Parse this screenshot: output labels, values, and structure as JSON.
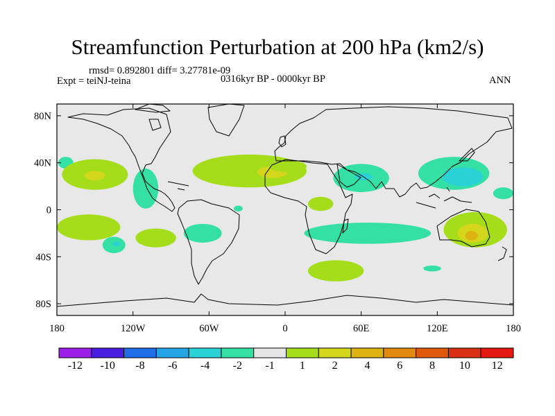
{
  "title": "Streamfunction Perturbation at 200 hPa (km2/s)",
  "stats": "rmsd= 0.892801 diff= 3.27781e-09",
  "experiment": "Expt = teiNJ-teina",
  "period": "0316kyr BP - 0000kyr BP",
  "season": "ANN",
  "colors": {
    "background": "#e8e8e8",
    "coast": "#000000"
  },
  "chart_data": {
    "type": "heatmap",
    "xlim": [
      -180,
      180
    ],
    "ylim": [
      -90,
      90
    ],
    "x_ticks": [
      {
        "value": -180,
        "label": "180"
      },
      {
        "value": -120,
        "label": "120W"
      },
      {
        "value": -60,
        "label": "60W"
      },
      {
        "value": 0,
        "label": "0"
      },
      {
        "value": 60,
        "label": "60E"
      },
      {
        "value": 120,
        "label": "120E"
      },
      {
        "value": 180,
        "label": "180"
      }
    ],
    "y_ticks": [
      {
        "value": 80,
        "label": "80N"
      },
      {
        "value": 40,
        "label": "40N"
      },
      {
        "value": 0,
        "label": "0"
      },
      {
        "value": -40,
        "label": "40S"
      },
      {
        "value": -80,
        "label": "80S"
      }
    ],
    "colorbar": {
      "colors": [
        "#9b1fe6",
        "#4a1ee0",
        "#1f6ee8",
        "#26a5e6",
        "#2ad2d6",
        "#34e0a4",
        "#e6e6e6",
        "#a6dd1a",
        "#d4d61c",
        "#dcb310",
        "#e28a0e",
        "#e05a0c",
        "#d83010",
        "#e41a12"
      ],
      "labels": [
        "-12",
        "-10",
        "-8",
        "-6",
        "-4",
        "-2",
        "-1",
        "1",
        "2",
        "4",
        "6",
        "8",
        "10",
        "12"
      ]
    },
    "regions": [
      {
        "level": "-2",
        "color": "#34e0a4",
        "lon": 133,
        "lat": 31,
        "rlon": 28,
        "rlat": 14
      },
      {
        "level": "-4",
        "color": "#2ad2d6",
        "lon": 140,
        "lat": 28,
        "rlon": 16,
        "rlat": 8
      },
      {
        "level": "-2",
        "color": "#34e0a4",
        "lon": 60,
        "lat": 27,
        "rlon": 22,
        "rlat": 12
      },
      {
        "level": "-4",
        "color": "#2ad2d6",
        "lon": 62,
        "lat": 28,
        "rlon": 7,
        "rlat": 3
      },
      {
        "level": "-2",
        "color": "#34e0a4",
        "lon": 65,
        "lat": -20,
        "rlon": 50,
        "rlat": 9
      },
      {
        "level": "-2",
        "color": "#34e0a4",
        "lon": -110,
        "lat": 18,
        "rlon": 10,
        "rlat": 17
      },
      {
        "level": "-2",
        "color": "#34e0a4",
        "lon": -65,
        "lat": -20,
        "rlon": 15,
        "rlat": 8
      },
      {
        "level": "-2",
        "color": "#34e0a4",
        "lon": -37,
        "lat": 1,
        "rlon": 3.5,
        "rlat": 2.5
      },
      {
        "level": "-2",
        "color": "#34e0a4",
        "lon": -135,
        "lat": -30,
        "rlon": 9,
        "rlat": 7
      },
      {
        "level": "-4",
        "color": "#2ad2d6",
        "lon": -133,
        "lat": -29,
        "rlon": 3,
        "rlat": 2
      },
      {
        "level": "-2",
        "color": "#34e0a4",
        "lon": 116,
        "lat": -50,
        "rlon": 7,
        "rlat": 2.5
      },
      {
        "level": "-2",
        "color": "#34e0a4",
        "lon": 172,
        "lat": 14,
        "rlon": 8,
        "rlat": 5
      },
      {
        "level": "-2",
        "color": "#34e0a4",
        "lon": -173,
        "lat": 40,
        "rlon": 6,
        "rlat": 5
      },
      {
        "level": "2",
        "color": "#a6dd1a",
        "lon": -28,
        "lat": 33,
        "rlon": 45,
        "rlat": 14
      },
      {
        "level": "4",
        "color": "#d4d61c",
        "lon": -10,
        "lat": 32,
        "rlon": 12,
        "rlat": 5
      },
      {
        "level": "2",
        "color": "#a6dd1a",
        "lon": 2,
        "lat": 37,
        "rlon": 15,
        "rlat": 5
      },
      {
        "level": "2",
        "color": "#a6dd1a",
        "lon": -150,
        "lat": 30,
        "rlon": 26,
        "rlat": 13
      },
      {
        "level": "4",
        "color": "#d4d61c",
        "lon": -150,
        "lat": 29,
        "rlon": 8,
        "rlat": 4
      },
      {
        "level": "2",
        "color": "#a6dd1a",
        "lon": -155,
        "lat": -15,
        "rlon": 25,
        "rlat": 11
      },
      {
        "level": "2",
        "color": "#a6dd1a",
        "lon": -102,
        "lat": -24,
        "rlon": 16,
        "rlat": 8
      },
      {
        "level": "2",
        "color": "#a6dd1a",
        "lon": 40,
        "lat": -52,
        "rlon": 22,
        "rlat": 9
      },
      {
        "level": "2",
        "color": "#a6dd1a",
        "lon": 28,
        "lat": 5,
        "rlon": 10,
        "rlat": 6
      },
      {
        "level": "2",
        "color": "#a6dd1a",
        "lon": 150,
        "lat": -17,
        "rlon": 25,
        "rlat": 15
      },
      {
        "level": "4",
        "color": "#d4d61c",
        "lon": 148,
        "lat": -20,
        "rlon": 12,
        "rlat": 8
      },
      {
        "level": "6",
        "color": "#dcb310",
        "lon": 147,
        "lat": -22,
        "rlon": 5,
        "rlat": 4
      }
    ]
  }
}
